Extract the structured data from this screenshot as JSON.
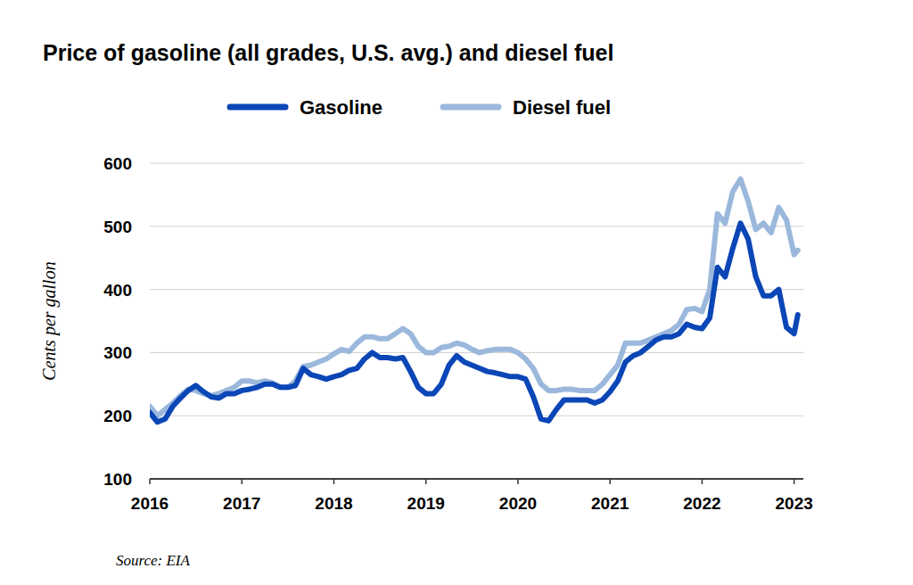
{
  "chart_data": {
    "type": "line",
    "title": "Price of gasoline (all grades, U.S. avg.) and diesel fuel",
    "y_label": "Cents per gallon",
    "source": "Source: EIA",
    "x": [
      2016,
      2016.083,
      2016.167,
      2016.25,
      2016.333,
      2016.417,
      2016.5,
      2016.583,
      2016.667,
      2016.75,
      2016.833,
      2016.917,
      2017,
      2017.083,
      2017.167,
      2017.25,
      2017.333,
      2017.417,
      2017.5,
      2017.583,
      2017.667,
      2017.75,
      2017.833,
      2017.917,
      2018,
      2018.083,
      2018.167,
      2018.25,
      2018.333,
      2018.417,
      2018.5,
      2018.583,
      2018.667,
      2018.75,
      2018.833,
      2018.917,
      2019,
      2019.083,
      2019.167,
      2019.25,
      2019.333,
      2019.417,
      2019.5,
      2019.583,
      2019.667,
      2019.75,
      2019.833,
      2019.917,
      2020,
      2020.083,
      2020.167,
      2020.25,
      2020.333,
      2020.417,
      2020.5,
      2020.583,
      2020.667,
      2020.75,
      2020.833,
      2020.917,
      2021,
      2021.083,
      2021.167,
      2021.25,
      2021.333,
      2021.417,
      2021.5,
      2021.583,
      2021.667,
      2021.75,
      2021.833,
      2021.917,
      2022,
      2022.083,
      2022.167,
      2022.25,
      2022.333,
      2022.417,
      2022.5,
      2022.583,
      2022.667,
      2022.75,
      2022.833,
      2022.917,
      2023,
      2023.04
    ],
    "series": [
      {
        "name": "Gasoline",
        "color": "#0b46b6",
        "values": [
          205,
          190,
          195,
          215,
          228,
          240,
          248,
          238,
          230,
          228,
          235,
          235,
          240,
          242,
          245,
          250,
          250,
          245,
          245,
          248,
          275,
          265,
          262,
          258,
          262,
          265,
          272,
          275,
          290,
          300,
          292,
          292,
          290,
          292,
          270,
          245,
          235,
          235,
          250,
          280,
          295,
          285,
          280,
          275,
          270,
          268,
          265,
          262,
          262,
          258,
          230,
          195,
          192,
          210,
          225,
          225,
          225,
          225,
          220,
          225,
          238,
          255,
          285,
          295,
          300,
          310,
          320,
          325,
          325,
          330,
          345,
          340,
          338,
          355,
          435,
          420,
          465,
          505,
          480,
          420,
          390,
          390,
          400,
          340,
          330,
          360
        ]
      },
      {
        "name": "Diesel fuel",
        "color": "#9bb8dc",
        "values": [
          215,
          200,
          210,
          220,
          232,
          242,
          240,
          235,
          232,
          235,
          240,
          245,
          255,
          255,
          252,
          255,
          252,
          245,
          245,
          255,
          278,
          280,
          285,
          290,
          298,
          305,
          302,
          315,
          325,
          325,
          322,
          322,
          330,
          338,
          330,
          310,
          300,
          300,
          308,
          310,
          315,
          312,
          305,
          300,
          303,
          305,
          305,
          305,
          300,
          290,
          275,
          250,
          240,
          240,
          242,
          242,
          240,
          240,
          240,
          250,
          265,
          280,
          315,
          315,
          315,
          320,
          325,
          330,
          335,
          345,
          368,
          370,
          365,
          400,
          520,
          505,
          555,
          575,
          540,
          495,
          505,
          490,
          530,
          510,
          455,
          462
        ]
      }
    ],
    "xlim": [
      2016,
      2023.1
    ],
    "xticks": [
      2016,
      2017,
      2018,
      2019,
      2020,
      2021,
      2022,
      2023
    ],
    "ylim": [
      100,
      600
    ],
    "yticks": [
      100,
      200,
      300,
      400,
      500,
      600
    ],
    "grid": true,
    "legend": "top"
  }
}
